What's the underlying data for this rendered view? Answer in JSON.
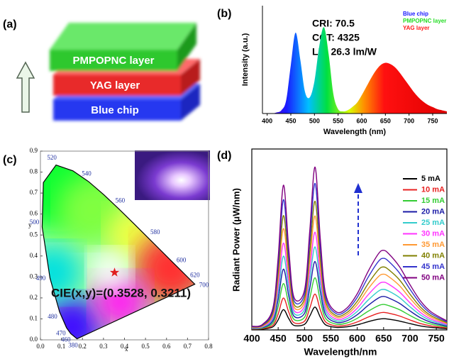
{
  "diagram": {
    "label": "(a)",
    "layers": [
      "PMPOPNC layer",
      "YAG layer",
      "Blue chip"
    ]
  },
  "chart_data": [
    {
      "type": "area",
      "panel_label": "(b)",
      "x_label": "Wavelength (nm)",
      "y_label": "Intensity (a.u.)",
      "annotations": [
        "CRI: 70.5",
        "CCT: 4325",
        "LE: 26.3 lm/W"
      ],
      "legend": [
        {
          "name": "Blue chip",
          "color": "#1a1aff"
        },
        {
          "name": "PMPOPNC layer",
          "color": "#22dd22"
        },
        {
          "name": "YAG layer",
          "color": "#ff1a1a"
        }
      ],
      "x": [
        400,
        410,
        420,
        430,
        440,
        450,
        460,
        470,
        480,
        490,
        500,
        510,
        520,
        530,
        540,
        550,
        560,
        570,
        580,
        590,
        600,
        610,
        620,
        630,
        640,
        650,
        660,
        670,
        680,
        690,
        700,
        710,
        720,
        730,
        740,
        750,
        760,
        770,
        780
      ],
      "values": [
        0,
        0,
        0.01,
        0.03,
        0.12,
        0.45,
        0.75,
        0.5,
        0.2,
        0.15,
        0.3,
        0.62,
        0.8,
        0.55,
        0.18,
        0.04,
        0.02,
        0.03,
        0.06,
        0.1,
        0.17,
        0.25,
        0.33,
        0.4,
        0.45,
        0.47,
        0.46,
        0.43,
        0.38,
        0.32,
        0.26,
        0.2,
        0.15,
        0.11,
        0.08,
        0.06,
        0.04,
        0.03,
        0.02
      ],
      "xlim": [
        390,
        780
      ],
      "ylim": [
        0,
        1
      ],
      "xticks": [
        400,
        450,
        500,
        550,
        600,
        650,
        700,
        750
      ]
    },
    {
      "type": "cie",
      "panel_label": "(c)",
      "x_label": "x",
      "y_label": "y",
      "annotation": "CIE(x,y)=(0.3528, 0.3211)",
      "point": {
        "x": 0.3528,
        "y": 0.3211
      },
      "point_color": "#e02020",
      "locus": {
        "x": [
          0.1741,
          0.144,
          0.1241,
          0.0913,
          0.0454,
          0.0082,
          0.0139,
          0.0743,
          0.1547,
          0.2296,
          0.3016,
          0.3731,
          0.4441,
          0.5125,
          0.5752,
          0.627,
          0.6658,
          0.6915,
          0.7347
        ],
        "y": [
          0.005,
          0.0297,
          0.0578,
          0.1327,
          0.295,
          0.5384,
          0.7502,
          0.8338,
          0.8059,
          0.7543,
          0.6923,
          0.6245,
          0.5547,
          0.4866,
          0.4242,
          0.3725,
          0.334,
          0.3083,
          0.2653
        ],
        "labels": [
          "380",
          "460",
          "470",
          "480",
          "490",
          "500",
          null,
          "520",
          null,
          "540",
          null,
          "560",
          null,
          "580",
          null,
          "600",
          null,
          "620",
          "700"
        ]
      },
      "xlim": [
        0,
        0.8
      ],
      "ylim": [
        0,
        0.9
      ],
      "xticks": [
        {
          "value": 0,
          "label": "0.0"
        },
        0.1,
        0.2,
        0.3,
        0.4,
        0.5,
        0.6,
        0.7,
        0.8
      ],
      "yticks": [
        {
          "value": 0,
          "label": "0.0"
        },
        0.1,
        0.2,
        0.3,
        0.4,
        0.5,
        0.6,
        0.7,
        0.8,
        0.9
      ]
    },
    {
      "type": "line",
      "panel_label": "(d)",
      "x_label": "Wavelength/nm",
      "y_label": "Radiant Power (μW/nm)",
      "x": [
        400,
        420,
        440,
        450,
        460,
        470,
        480,
        500,
        510,
        520,
        530,
        540,
        560,
        580,
        600,
        620,
        640,
        650,
        660,
        680,
        700,
        720,
        740,
        770
      ],
      "xlim": [
        400,
        770
      ],
      "ylim": [
        0,
        1
      ],
      "xticks": [
        400,
        450,
        500,
        550,
        600,
        650,
        700,
        750
      ],
      "series": [
        {
          "name": "5 mA",
          "color": "#000000",
          "values": [
            0.003,
            0.004,
            0.017,
            0.056,
            0.112,
            0.063,
            0.025,
            0.031,
            0.077,
            0.126,
            0.07,
            0.028,
            0.014,
            0.017,
            0.028,
            0.045,
            0.059,
            0.062,
            0.059,
            0.049,
            0.035,
            0.022,
            0.014,
            0.007
          ]
        },
        {
          "name": "10 mA",
          "color": "#e82020",
          "values": [
            0.004,
            0.007,
            0.026,
            0.088,
            0.176,
            0.099,
            0.04,
            0.048,
            0.121,
            0.198,
            0.11,
            0.044,
            0.022,
            0.026,
            0.044,
            0.07,
            0.092,
            0.097,
            0.092,
            0.077,
            0.055,
            0.035,
            0.022,
            0.011
          ]
        },
        {
          "name": "15 mA",
          "color": "#33cc33",
          "values": [
            0.006,
            0.01,
            0.038,
            0.128,
            0.256,
            0.144,
            0.058,
            0.07,
            0.176,
            0.288,
            0.16,
            0.064,
            0.032,
            0.038,
            0.064,
            0.102,
            0.134,
            0.141,
            0.134,
            0.112,
            0.08,
            0.051,
            0.032,
            0.016
          ]
        },
        {
          "name": "20 mA",
          "color": "#1a1aa6",
          "values": [
            0.008,
            0.013,
            0.05,
            0.168,
            0.336,
            0.189,
            0.076,
            0.092,
            0.231,
            0.378,
            0.21,
            0.084,
            0.042,
            0.05,
            0.084,
            0.134,
            0.176,
            0.185,
            0.176,
            0.147,
            0.105,
            0.067,
            0.042,
            0.021
          ]
        },
        {
          "name": "25 mA",
          "color": "#33cccc",
          "values": [
            0.01,
            0.015,
            0.061,
            0.204,
            0.408,
            0.23,
            0.092,
            0.112,
            0.281,
            0.459,
            0.255,
            0.102,
            0.051,
            0.061,
            0.102,
            0.163,
            0.214,
            0.224,
            0.214,
            0.179,
            0.128,
            0.082,
            0.051,
            0.026
          ]
        },
        {
          "name": "30 mA",
          "color": "#ff33ff",
          "values": [
            0.012,
            0.018,
            0.072,
            0.24,
            0.48,
            0.27,
            0.108,
            0.132,
            0.33,
            0.54,
            0.3,
            0.12,
            0.06,
            0.072,
            0.12,
            0.192,
            0.252,
            0.264,
            0.252,
            0.21,
            0.15,
            0.096,
            0.06,
            0.03
          ]
        },
        {
          "name": "35 mA",
          "color": "#ff9933",
          "values": [
            0.014,
            0.021,
            0.084,
            0.28,
            0.56,
            0.315,
            0.126,
            0.154,
            0.385,
            0.63,
            0.35,
            0.14,
            0.07,
            0.084,
            0.14,
            0.224,
            0.294,
            0.308,
            0.294,
            0.245,
            0.175,
            0.112,
            0.07,
            0.035
          ]
        },
        {
          "name": "40 mA",
          "color": "#808000",
          "values": [
            0.016,
            0.024,
            0.095,
            0.316,
            0.632,
            0.356,
            0.142,
            0.174,
            0.435,
            0.711,
            0.395,
            0.158,
            0.079,
            0.095,
            0.158,
            0.253,
            0.332,
            0.348,
            0.332,
            0.277,
            0.198,
            0.126,
            0.079,
            0.04
          ]
        },
        {
          "name": "45 mA",
          "color": "#3333cc",
          "values": [
            0.018,
            0.027,
            0.108,
            0.36,
            0.72,
            0.405,
            0.162,
            0.198,
            0.495,
            0.81,
            0.45,
            0.18,
            0.09,
            0.108,
            0.18,
            0.288,
            0.378,
            0.396,
            0.378,
            0.315,
            0.225,
            0.144,
            0.09,
            0.045
          ]
        },
        {
          "name": "50 mA",
          "color": "#800080",
          "values": [
            0.02,
            0.03,
            0.12,
            0.4,
            0.8,
            0.45,
            0.18,
            0.22,
            0.55,
            0.9,
            0.5,
            0.2,
            0.1,
            0.12,
            0.2,
            0.32,
            0.42,
            0.44,
            0.42,
            0.35,
            0.25,
            0.16,
            0.1,
            0.05
          ]
        }
      ]
    }
  ]
}
